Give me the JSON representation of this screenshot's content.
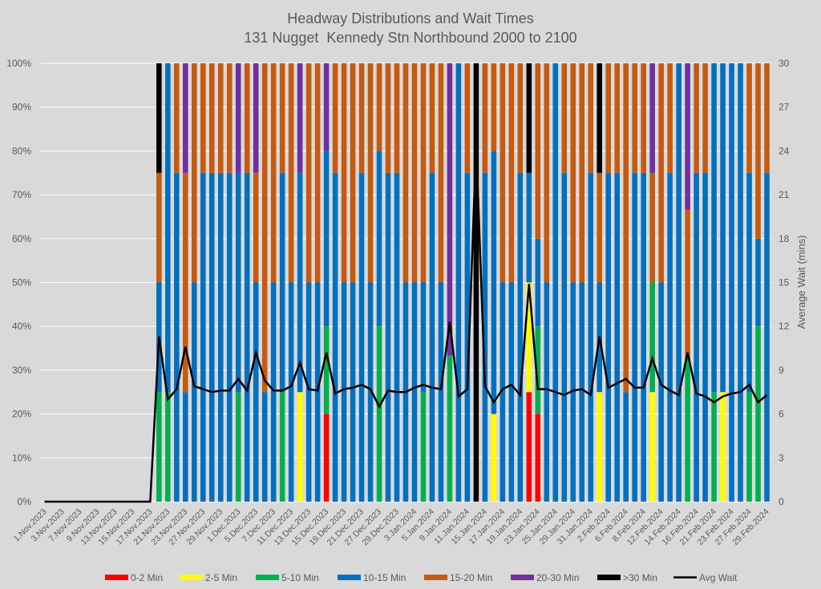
{
  "chart_data": {
    "type": "bar",
    "stacked": true,
    "title": "Headway Distributions and Wait Times",
    "subtitle": "131 Nugget  Kennedy Stn Northbound 2000 to 2100",
    "xlabel": "",
    "ylabel": "",
    "y2label": "Average Wait (mins)",
    "ylim": [
      0,
      100
    ],
    "y2lim": [
      0,
      30
    ],
    "grid": true,
    "legend_position": "bottom",
    "y_ticks": [
      "0%",
      "10%",
      "20%",
      "30%",
      "40%",
      "50%",
      "60%",
      "70%",
      "80%",
      "90%",
      "100%"
    ],
    "y2_ticks": [
      "0",
      "3",
      "6",
      "9",
      "12",
      "15",
      "18",
      "21",
      "24",
      "27",
      "30"
    ],
    "category_count": 83,
    "x_tick_every": 2,
    "x_tick_labels": [
      "1.Nov.2023",
      "3.Nov.2023",
      "7.Nov.2023",
      "9.Nov.2023",
      "13.Nov.2023",
      "15.Nov.2023",
      "17.Nov.2023",
      "21.Nov.2023",
      "23.Nov.2023",
      "27.Nov.2023",
      "29.Nov.2023",
      "1.Dec.2023",
      "5.Dec.2023",
      "7.Dec.2023",
      "11.Dec.2023",
      "13.Dec.2023",
      "15.Dec.2023",
      "19.Dec.2023",
      "21.Dec.2023",
      "27.Dec.2023",
      "29.Dec.2023",
      "3.Jan.2024",
      "5.Jan.2024",
      "9.Jan.2024",
      "11.Jan.2024",
      "15.Jan.2024",
      "17.Jan.2024",
      "19.Jan.2024",
      "23.Jan.2024",
      "25.Jan.2024",
      "29.Jan.2024",
      "31.Jan.2024",
      "2.Feb.2024",
      "6.Feb.2024",
      "8.Feb.2024",
      "12.Feb.2024",
      "14.Feb.2024",
      "16.Feb.2024",
      "21.Feb.2024",
      "23.Feb.2024",
      "27.Feb.2024",
      "29.Feb.2024"
    ],
    "series": [
      {
        "name": "0-2 Min",
        "type": "bar",
        "color": "#FF0000",
        "values": [
          0,
          0,
          0,
          0,
          0,
          0,
          0,
          0,
          0,
          0,
          0,
          0,
          0,
          0,
          0,
          0,
          0,
          0,
          0,
          0,
          0,
          0,
          0,
          0,
          0,
          0,
          0,
          0,
          0,
          0,
          0,
          0,
          20,
          0,
          0,
          0,
          0,
          0,
          0,
          0,
          0,
          0,
          0,
          0,
          0,
          0,
          0,
          0,
          0,
          0,
          0,
          0,
          0,
          0,
          0,
          25,
          20,
          0,
          0,
          0,
          0,
          0,
          0,
          0,
          0,
          0,
          0,
          0,
          0,
          0,
          0,
          0,
          0,
          0,
          0,
          0,
          0,
          0,
          0,
          0,
          0,
          0,
          0
        ]
      },
      {
        "name": "2-5 Min",
        "type": "bar",
        "color": "#FFFF00",
        "values": [
          0,
          0,
          0,
          0,
          0,
          0,
          0,
          0,
          0,
          0,
          0,
          0,
          0,
          0,
          0,
          0,
          0,
          0,
          0,
          0,
          0,
          0,
          0,
          0,
          0,
          0,
          0,
          0,
          0,
          25,
          0,
          0,
          0,
          0,
          0,
          0,
          0,
          0,
          0,
          0,
          0,
          0,
          0,
          0,
          0,
          0,
          0,
          0,
          0,
          0,
          0,
          20,
          0,
          0,
          0,
          25,
          0,
          0,
          0,
          0,
          0,
          0,
          0,
          25,
          0,
          0,
          0,
          0,
          0,
          25,
          0,
          0,
          0,
          0,
          0,
          0,
          0,
          25,
          0,
          0,
          0,
          0,
          0
        ]
      },
      {
        "name": "5-10 Min",
        "type": "bar",
        "color": "#00B050",
        "values": [
          0,
          0,
          0,
          0,
          0,
          0,
          0,
          0,
          0,
          0,
          0,
          0,
          0,
          25,
          25,
          0,
          0,
          0,
          0,
          0,
          0,
          0,
          25,
          0,
          0,
          0,
          0,
          25,
          0,
          0,
          0,
          0,
          20,
          0,
          0,
          0,
          0,
          0,
          40,
          0,
          0,
          0,
          0,
          25,
          0,
          0,
          33.3,
          0,
          0,
          0,
          0,
          0,
          0,
          0,
          0,
          0,
          20,
          0,
          0,
          0,
          0,
          0,
          0,
          0,
          0,
          0,
          0,
          0,
          0,
          25,
          0,
          0,
          0,
          33.3,
          0,
          0,
          25,
          0,
          0,
          0,
          25,
          40,
          0
        ]
      },
      {
        "name": "10-15 Min",
        "type": "bar",
        "color": "#0070C0",
        "values": [
          0,
          0,
          0,
          0,
          0,
          0,
          0,
          0,
          0,
          0,
          0,
          0,
          0,
          25,
          75,
          75,
          25,
          50,
          75,
          75,
          75,
          75,
          50,
          75,
          50,
          25,
          50,
          50,
          50,
          50,
          50,
          50,
          40,
          75,
          50,
          50,
          75,
          50,
          40,
          75,
          75,
          50,
          50,
          25,
          75,
          50,
          0,
          100,
          75,
          0,
          75,
          60,
          50,
          50,
          75,
          25,
          20,
          50,
          100,
          75,
          50,
          50,
          75,
          25,
          75,
          75,
          25,
          75,
          75,
          0,
          50,
          75,
          100,
          0,
          75,
          75,
          75,
          75,
          100,
          100,
          50,
          20,
          75
        ]
      },
      {
        "name": "15-20 Min",
        "type": "bar",
        "color": "#C55A11",
        "values": [
          0,
          0,
          0,
          0,
          0,
          0,
          0,
          0,
          0,
          0,
          0,
          0,
          0,
          25,
          0,
          25,
          50,
          50,
          25,
          25,
          25,
          25,
          0,
          25,
          25,
          75,
          50,
          25,
          50,
          0,
          50,
          50,
          0,
          25,
          50,
          50,
          25,
          50,
          20,
          25,
          25,
          50,
          50,
          50,
          25,
          50,
          0,
          0,
          25,
          0,
          25,
          20,
          50,
          50,
          25,
          0,
          40,
          50,
          0,
          25,
          50,
          50,
          25,
          25,
          25,
          25,
          75,
          25,
          25,
          25,
          50,
          25,
          0,
          33.3,
          25,
          25,
          0,
          0,
          0,
          0,
          25,
          40,
          25
        ]
      },
      {
        "name": "20-30 Min",
        "type": "bar",
        "color": "#7030A0",
        "values": [
          0,
          0,
          0,
          0,
          0,
          0,
          0,
          0,
          0,
          0,
          0,
          0,
          0,
          0,
          0,
          0,
          25,
          0,
          0,
          0,
          0,
          0,
          25,
          0,
          25,
          0,
          0,
          0,
          0,
          25,
          0,
          0,
          20,
          0,
          0,
          0,
          0,
          0,
          0,
          0,
          0,
          0,
          0,
          0,
          0,
          0,
          66.7,
          0,
          0,
          0,
          0,
          0,
          0,
          0,
          0,
          0,
          0,
          0,
          0,
          0,
          0,
          0,
          0,
          0,
          0,
          0,
          0,
          0,
          0,
          25,
          0,
          0,
          0,
          33.4,
          0,
          0,
          0,
          0,
          0,
          0,
          0,
          0,
          0
        ]
      },
      {
        "name": ">30 Min",
        "type": "bar",
        "color": "#000000",
        "values": [
          0,
          0,
          0,
          0,
          0,
          0,
          0,
          0,
          0,
          0,
          0,
          0,
          0,
          25,
          0,
          0,
          0,
          0,
          0,
          0,
          0,
          0,
          0,
          0,
          0,
          0,
          0,
          0,
          0,
          0,
          0,
          0,
          0,
          0,
          0,
          0,
          0,
          0,
          0,
          0,
          0,
          0,
          0,
          0,
          0,
          0,
          0,
          0,
          0,
          100,
          0,
          0,
          0,
          0,
          0,
          25,
          0,
          0,
          0,
          0,
          0,
          0,
          0,
          25,
          0,
          0,
          0,
          0,
          0,
          0,
          0,
          0,
          0,
          0,
          0,
          0,
          0,
          0,
          0,
          0,
          0,
          0,
          0
        ]
      },
      {
        "name": "Avg Wait",
        "type": "line",
        "axis": "right",
        "color": "#000000",
        "values": [
          0,
          0,
          0,
          0,
          0,
          0,
          0,
          0,
          0,
          0,
          0,
          0,
          0,
          11.3,
          7.0,
          7.7,
          10.6,
          7.9,
          7.7,
          7.5,
          7.6,
          7.6,
          8.4,
          7.6,
          10.2,
          8.3,
          7.6,
          7.6,
          7.9,
          9.5,
          7.7,
          7.6,
          10.2,
          7.4,
          7.7,
          7.8,
          8.0,
          7.7,
          6.5,
          7.6,
          7.5,
          7.5,
          7.8,
          8.0,
          7.8,
          7.7,
          12.3,
          7.2,
          7.7,
          24.5,
          7.9,
          6.8,
          7.7,
          8.0,
          7.3,
          14.9,
          7.7,
          7.7,
          7.5,
          7.3,
          7.6,
          7.7,
          7.3,
          11.3,
          7.8,
          8.1,
          8.4,
          7.8,
          7.8,
          9.8,
          8.0,
          7.6,
          7.3,
          10.2,
          7.4,
          7.2,
          6.8,
          7.2,
          7.4,
          7.5,
          8.0,
          6.8,
          7.3
        ]
      }
    ]
  }
}
